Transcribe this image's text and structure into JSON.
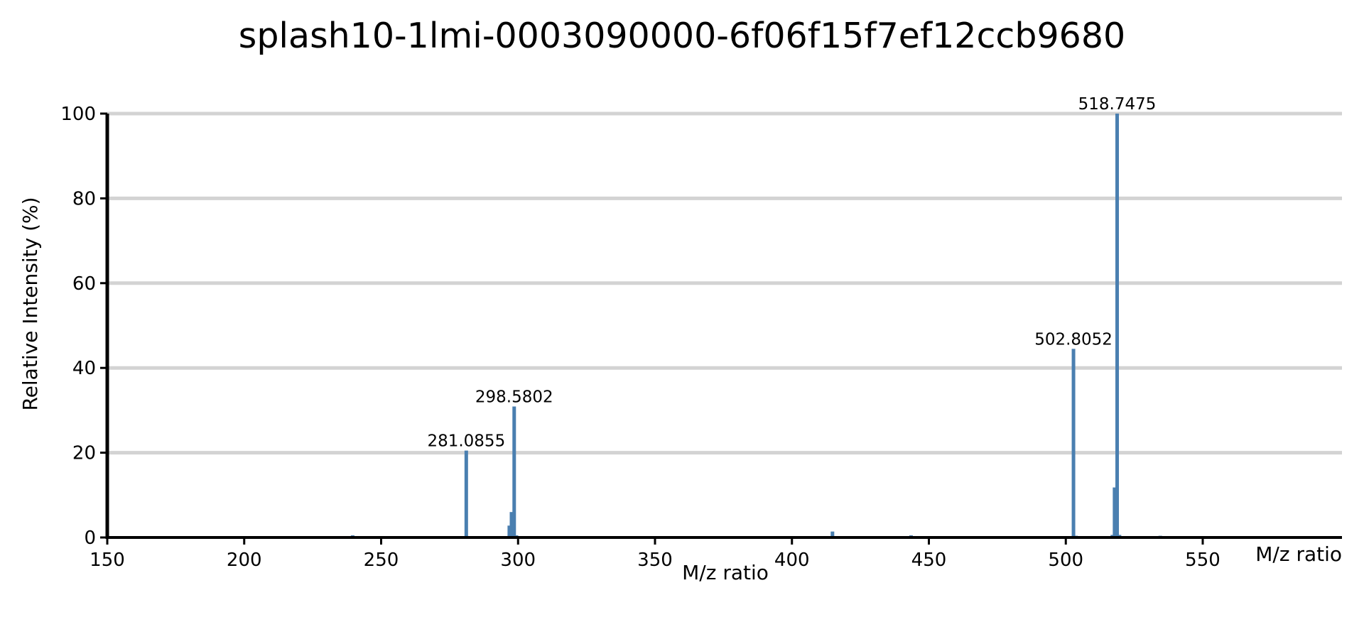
{
  "chart_data": {
    "type": "bar",
    "title": "splash10-1lmi-0003090000-6f06f15f7ef12ccb9680",
    "xlabel": "M/z ratio",
    "ylabel": "Relative Intensity (%)",
    "xlim": [
      150,
      600
    ],
    "ylim": [
      0,
      100
    ],
    "xticks": [
      150,
      200,
      250,
      300,
      350,
      400,
      450,
      500,
      550
    ],
    "yticks": [
      0,
      20,
      40,
      60,
      80,
      100
    ],
    "grid": true,
    "bar_color": "#4a7fb0",
    "peaks": [
      {
        "x": 200.4,
        "y": 0.2
      },
      {
        "x": 202.0,
        "y": 0.2
      },
      {
        "x": 215.3,
        "y": 0.2
      },
      {
        "x": 218.1,
        "y": 0.3
      },
      {
        "x": 221.0,
        "y": 0.3
      },
      {
        "x": 223.2,
        "y": 0.2
      },
      {
        "x": 225.4,
        "y": 0.2
      },
      {
        "x": 239.6,
        "y": 0.5
      },
      {
        "x": 281.0855,
        "y": 20.5,
        "label": "281.0855"
      },
      {
        "x": 296.8,
        "y": 2.8
      },
      {
        "x": 297.6,
        "y": 6.0
      },
      {
        "x": 298.5802,
        "y": 30.9,
        "label": "298.5802"
      },
      {
        "x": 299.4,
        "y": 0.5
      },
      {
        "x": 312.0,
        "y": 0.2
      },
      {
        "x": 340.0,
        "y": 0.2
      },
      {
        "x": 355.0,
        "y": 0.2
      },
      {
        "x": 385.0,
        "y": 0.2
      },
      {
        "x": 392.0,
        "y": 0.2
      },
      {
        "x": 410.0,
        "y": 0.3
      },
      {
        "x": 414.8,
        "y": 1.4
      },
      {
        "x": 431.0,
        "y": 0.2
      },
      {
        "x": 436.0,
        "y": 0.2
      },
      {
        "x": 443.5,
        "y": 0.5
      },
      {
        "x": 449.0,
        "y": 0.2
      },
      {
        "x": 456.0,
        "y": 0.2
      },
      {
        "x": 461.0,
        "y": 0.2
      },
      {
        "x": 489.0,
        "y": 0.2
      },
      {
        "x": 496.0,
        "y": 0.2
      },
      {
        "x": 502.8052,
        "y": 44.5,
        "label": "502.8052"
      },
      {
        "x": 503.7,
        "y": 0.4
      },
      {
        "x": 517.0,
        "y": 0.6
      },
      {
        "x": 517.8,
        "y": 11.8
      },
      {
        "x": 518.7475,
        "y": 100,
        "label": "518.7475"
      },
      {
        "x": 519.6,
        "y": 0.6
      },
      {
        "x": 525.0,
        "y": 0.2
      },
      {
        "x": 534.5,
        "y": 0.4
      }
    ]
  }
}
